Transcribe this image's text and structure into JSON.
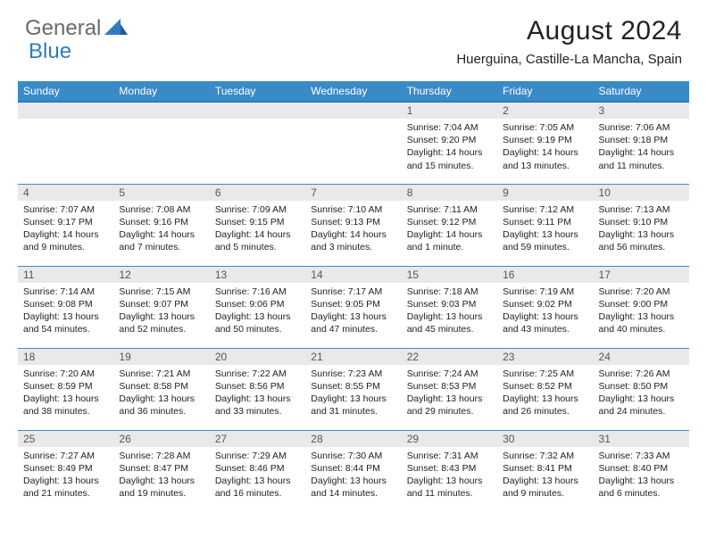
{
  "logo": {
    "word1": "General",
    "word2": "Blue",
    "accent_color": "#2f7bbf",
    "neutral_color": "#6a6a6a"
  },
  "title": "August 2024",
  "location": "Huerguina, Castille-La Mancha, Spain",
  "colors": {
    "header_bg": "#3a8ac8",
    "header_border": "#2f7bbf",
    "daynum_bg": "#e9e9e9",
    "text": "#222222"
  },
  "weekdays": [
    "Sunday",
    "Monday",
    "Tuesday",
    "Wednesday",
    "Thursday",
    "Friday",
    "Saturday"
  ],
  "weeks": [
    [
      null,
      null,
      null,
      null,
      {
        "n": "1",
        "sunrise": "7:04 AM",
        "sunset": "9:20 PM",
        "daylight": "14 hours and 15 minutes."
      },
      {
        "n": "2",
        "sunrise": "7:05 AM",
        "sunset": "9:19 PM",
        "daylight": "14 hours and 13 minutes."
      },
      {
        "n": "3",
        "sunrise": "7:06 AM",
        "sunset": "9:18 PM",
        "daylight": "14 hours and 11 minutes."
      }
    ],
    [
      {
        "n": "4",
        "sunrise": "7:07 AM",
        "sunset": "9:17 PM",
        "daylight": "14 hours and 9 minutes."
      },
      {
        "n": "5",
        "sunrise": "7:08 AM",
        "sunset": "9:16 PM",
        "daylight": "14 hours and 7 minutes."
      },
      {
        "n": "6",
        "sunrise": "7:09 AM",
        "sunset": "9:15 PM",
        "daylight": "14 hours and 5 minutes."
      },
      {
        "n": "7",
        "sunrise": "7:10 AM",
        "sunset": "9:13 PM",
        "daylight": "14 hours and 3 minutes."
      },
      {
        "n": "8",
        "sunrise": "7:11 AM",
        "sunset": "9:12 PM",
        "daylight": "14 hours and 1 minute."
      },
      {
        "n": "9",
        "sunrise": "7:12 AM",
        "sunset": "9:11 PM",
        "daylight": "13 hours and 59 minutes."
      },
      {
        "n": "10",
        "sunrise": "7:13 AM",
        "sunset": "9:10 PM",
        "daylight": "13 hours and 56 minutes."
      }
    ],
    [
      {
        "n": "11",
        "sunrise": "7:14 AM",
        "sunset": "9:08 PM",
        "daylight": "13 hours and 54 minutes."
      },
      {
        "n": "12",
        "sunrise": "7:15 AM",
        "sunset": "9:07 PM",
        "daylight": "13 hours and 52 minutes."
      },
      {
        "n": "13",
        "sunrise": "7:16 AM",
        "sunset": "9:06 PM",
        "daylight": "13 hours and 50 minutes."
      },
      {
        "n": "14",
        "sunrise": "7:17 AM",
        "sunset": "9:05 PM",
        "daylight": "13 hours and 47 minutes."
      },
      {
        "n": "15",
        "sunrise": "7:18 AM",
        "sunset": "9:03 PM",
        "daylight": "13 hours and 45 minutes."
      },
      {
        "n": "16",
        "sunrise": "7:19 AM",
        "sunset": "9:02 PM",
        "daylight": "13 hours and 43 minutes."
      },
      {
        "n": "17",
        "sunrise": "7:20 AM",
        "sunset": "9:00 PM",
        "daylight": "13 hours and 40 minutes."
      }
    ],
    [
      {
        "n": "18",
        "sunrise": "7:20 AM",
        "sunset": "8:59 PM",
        "daylight": "13 hours and 38 minutes."
      },
      {
        "n": "19",
        "sunrise": "7:21 AM",
        "sunset": "8:58 PM",
        "daylight": "13 hours and 36 minutes."
      },
      {
        "n": "20",
        "sunrise": "7:22 AM",
        "sunset": "8:56 PM",
        "daylight": "13 hours and 33 minutes."
      },
      {
        "n": "21",
        "sunrise": "7:23 AM",
        "sunset": "8:55 PM",
        "daylight": "13 hours and 31 minutes."
      },
      {
        "n": "22",
        "sunrise": "7:24 AM",
        "sunset": "8:53 PM",
        "daylight": "13 hours and 29 minutes."
      },
      {
        "n": "23",
        "sunrise": "7:25 AM",
        "sunset": "8:52 PM",
        "daylight": "13 hours and 26 minutes."
      },
      {
        "n": "24",
        "sunrise": "7:26 AM",
        "sunset": "8:50 PM",
        "daylight": "13 hours and 24 minutes."
      }
    ],
    [
      {
        "n": "25",
        "sunrise": "7:27 AM",
        "sunset": "8:49 PM",
        "daylight": "13 hours and 21 minutes."
      },
      {
        "n": "26",
        "sunrise": "7:28 AM",
        "sunset": "8:47 PM",
        "daylight": "13 hours and 19 minutes."
      },
      {
        "n": "27",
        "sunrise": "7:29 AM",
        "sunset": "8:46 PM",
        "daylight": "13 hours and 16 minutes."
      },
      {
        "n": "28",
        "sunrise": "7:30 AM",
        "sunset": "8:44 PM",
        "daylight": "13 hours and 14 minutes."
      },
      {
        "n": "29",
        "sunrise": "7:31 AM",
        "sunset": "8:43 PM",
        "daylight": "13 hours and 11 minutes."
      },
      {
        "n": "30",
        "sunrise": "7:32 AM",
        "sunset": "8:41 PM",
        "daylight": "13 hours and 9 minutes."
      },
      {
        "n": "31",
        "sunrise": "7:33 AM",
        "sunset": "8:40 PM",
        "daylight": "13 hours and 6 minutes."
      }
    ]
  ],
  "labels": {
    "sunrise": "Sunrise: ",
    "sunset": "Sunset: ",
    "daylight": "Daylight: "
  }
}
